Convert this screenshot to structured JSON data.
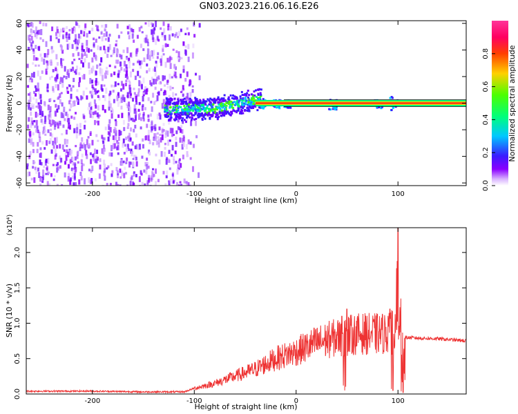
{
  "title": "GN03.2023.216.06.16.E26",
  "chart_data": [
    {
      "type": "heatmap",
      "name": "spectrogram",
      "xlabel": "Height of straight line (km)",
      "ylabel": "Frequency (Hz)",
      "xlim": [
        -265,
        167
      ],
      "ylim": [
        -62,
        62
      ],
      "xticks": [
        -200,
        -100,
        0,
        100
      ],
      "yticks": [
        60,
        40,
        20,
        0,
        -20,
        -40,
        -60
      ],
      "colorbar": {
        "label": "Normalized spectral amplitude",
        "range": [
          0,
          1
        ],
        "ticks": [
          "0.0",
          "0.2",
          "0.4",
          "0.6",
          "0.8"
        ],
        "colors": [
          "#ffffff",
          "#8a00ff",
          "#3a1bff",
          "#00c8ff",
          "#00ff7a",
          "#4cff00",
          "#ffd000",
          "#ff4000",
          "#ff0060",
          "#ff3399"
        ]
      },
      "regions": [
        {
          "x_range": [
            -265,
            -105
          ],
          "freq_half_width": 62,
          "amplitude": 0.12
        },
        {
          "x_range": [
            -130,
            -40
          ],
          "freq_half_width": 10,
          "amplitude": 0.4
        },
        {
          "x_range": [
            -40,
            167
          ],
          "freq_half_width": 1.5,
          "amplitude": 0.95
        }
      ]
    },
    {
      "type": "line",
      "name": "snr",
      "xlabel": "Height of straight line (km)",
      "ylabel": "SNR (10 * v/v)",
      "y_multiplier": "(x10⁴)",
      "xlim": [
        -265,
        167
      ],
      "ylim": [
        0,
        2.35
      ],
      "xticks": [
        -200,
        -100,
        0,
        100
      ],
      "yticks": [
        "0.0",
        "0.5",
        "1.0",
        "1.5",
        "2.0"
      ],
      "color": "#ee3333",
      "envelope": {
        "x": [
          -265,
          -200,
          -150,
          -110,
          -100,
          -80,
          -60,
          -40,
          -20,
          0,
          20,
          40,
          60,
          80,
          95,
          105,
          120,
          140,
          167
        ],
        "y": [
          0.04,
          0.04,
          0.03,
          0.03,
          0.08,
          0.15,
          0.25,
          0.35,
          0.5,
          0.6,
          0.72,
          0.8,
          0.85,
          0.85,
          0.87,
          0.8,
          0.79,
          0.78,
          0.75
        ]
      },
      "spikes": [
        {
          "x": 45,
          "y": 1.1
        },
        {
          "x": 48,
          "y": 0.05
        },
        {
          "x": 50,
          "y": 1.2
        },
        {
          "x": 92,
          "y": 1.2
        },
        {
          "x": 95,
          "y": 0.05
        },
        {
          "x": 100,
          "y": 2.35
        },
        {
          "x": 103,
          "y": 1.35
        },
        {
          "x": 105,
          "y": 0.02
        }
      ]
    }
  ]
}
